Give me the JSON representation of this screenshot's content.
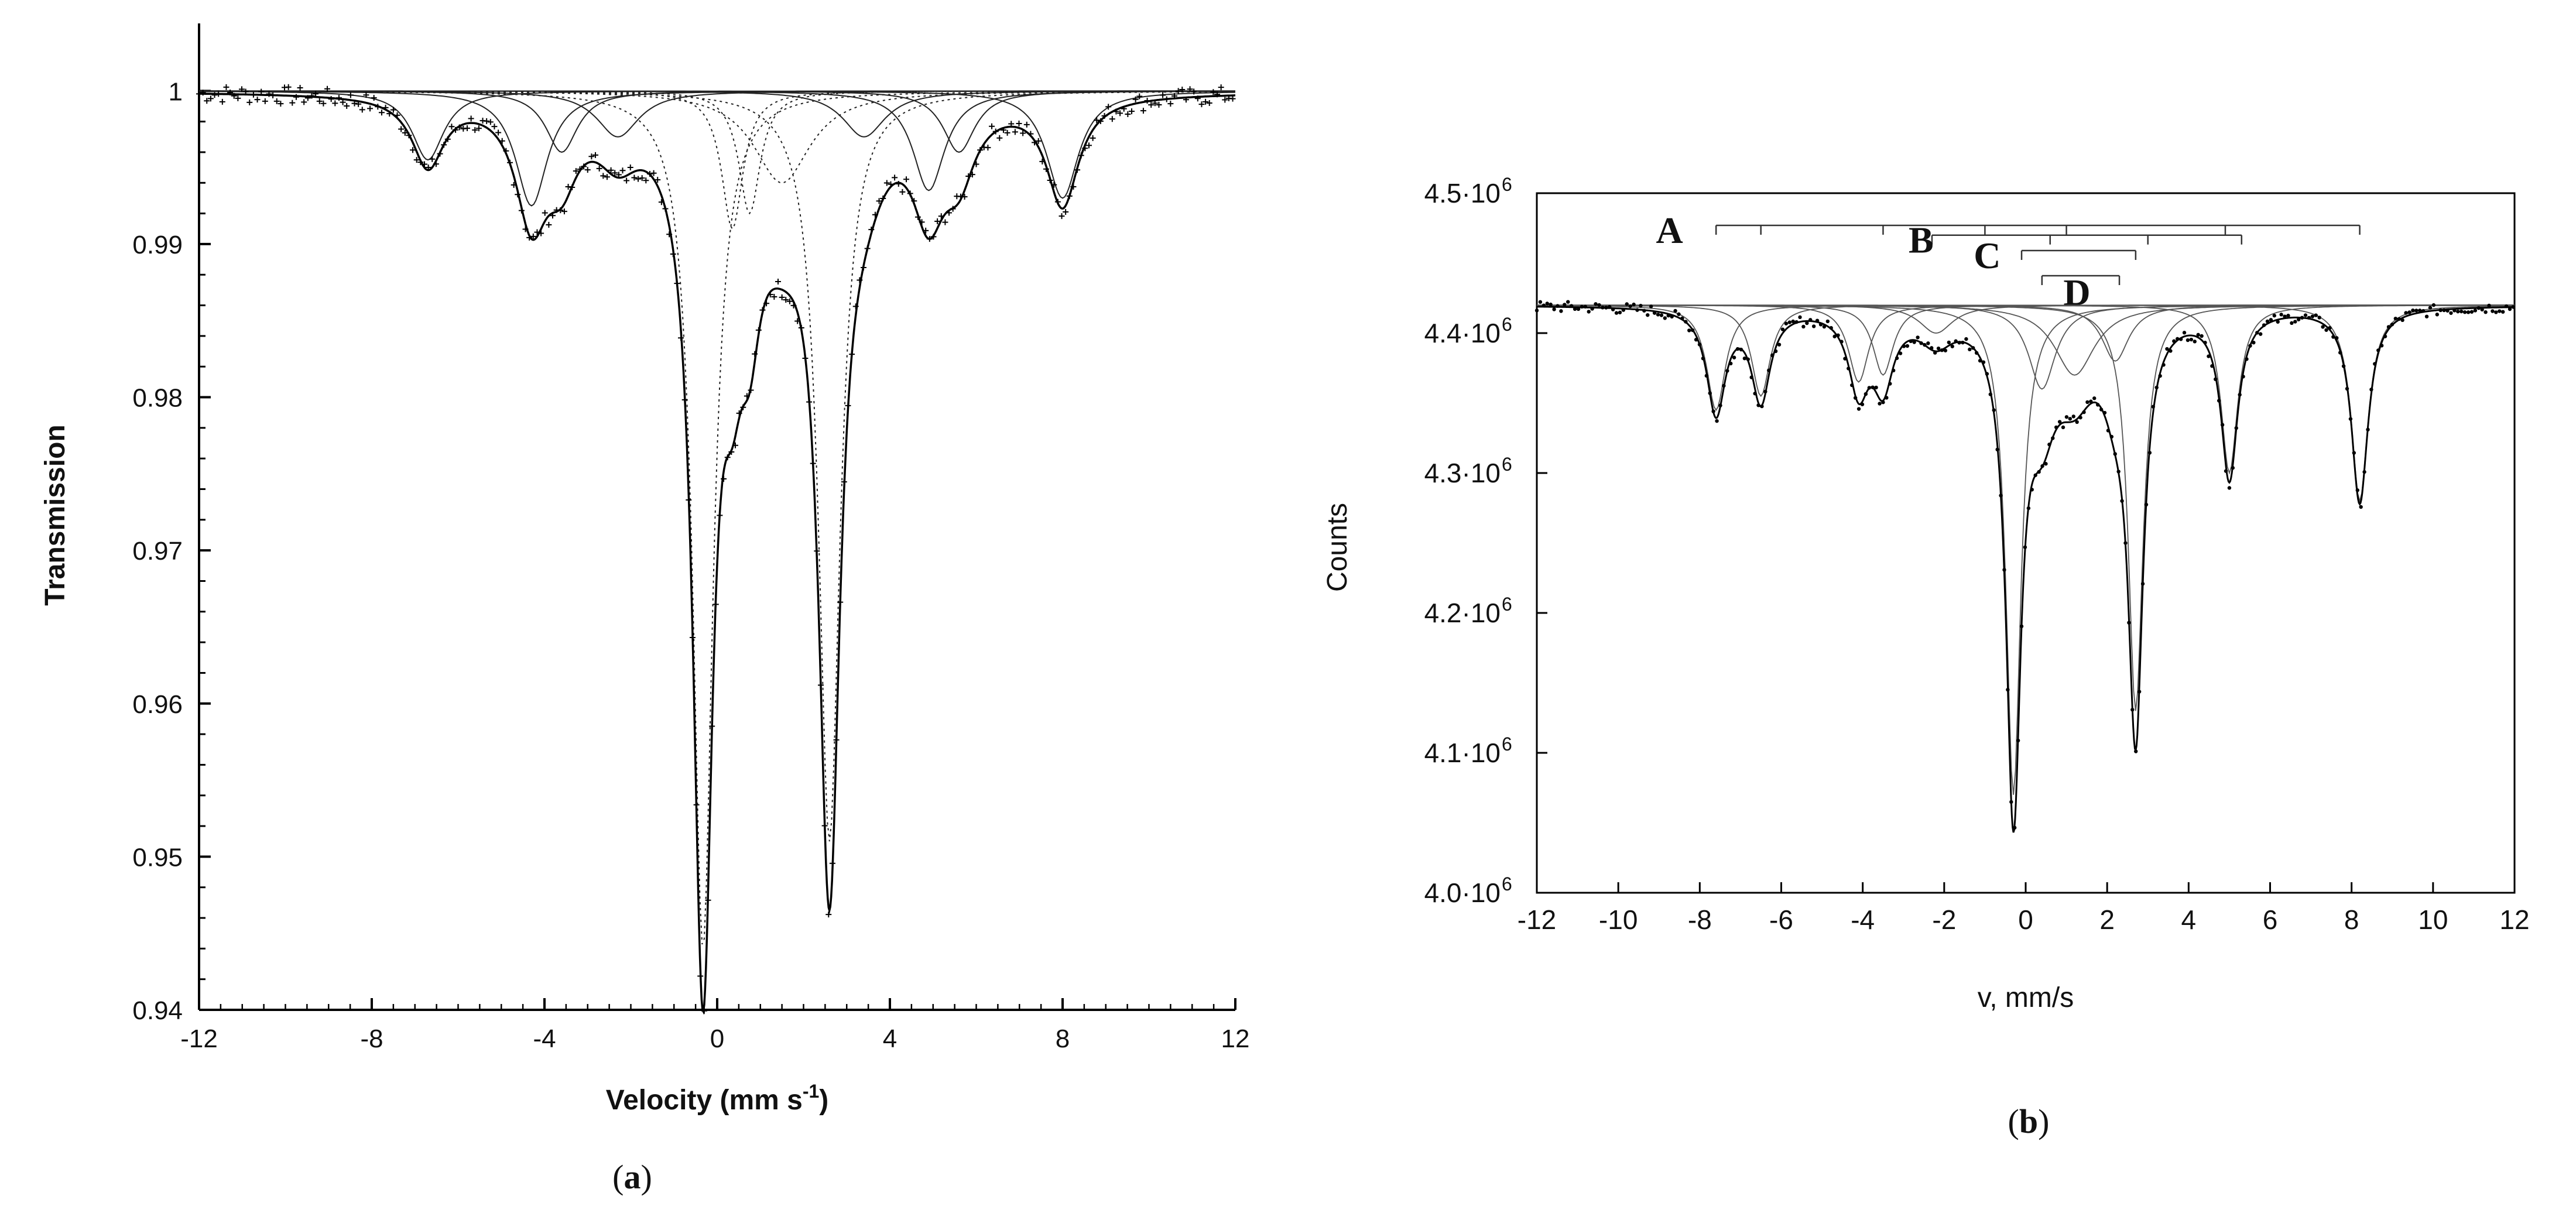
{
  "chart_data": [
    {
      "type": "line",
      "panel_label": "(a)",
      "panel_letter": "a",
      "xlabel": "Velocity (mm s",
      "xlabel_sup": "-1",
      "xlabel_end": ")",
      "ylabel": "Transmission",
      "xlim": [
        -12,
        12
      ],
      "ylim": [
        0.94,
        1.002
      ],
      "xticks": [
        -12,
        -8,
        -4,
        0,
        4,
        8,
        12
      ],
      "xtick_labels": [
        "-12",
        "-8",
        "-4",
        "0",
        "4",
        "8",
        "12"
      ],
      "yticks": [
        0.94,
        0.95,
        0.96,
        0.97,
        0.98,
        0.99,
        1
      ],
      "ytick_labels": [
        "0.94",
        "0.95",
        "0.96",
        "0.97",
        "0.98",
        "0.99",
        "1"
      ],
      "grid": false,
      "baseline": 1.0,
      "peaks": [
        {
          "x": -6.7,
          "depth": 0.0045,
          "width": 0.45
        },
        {
          "x": -4.3,
          "depth": 0.0075,
          "width": 0.45
        },
        {
          "x": -3.6,
          "depth": 0.004,
          "width": 0.45
        },
        {
          "x": -2.3,
          "depth": 0.003,
          "width": 0.6
        },
        {
          "x": -0.33,
          "depth": 0.056,
          "width": 0.28
        },
        {
          "x": 0.35,
          "depth": 0.009,
          "width": 0.3
        },
        {
          "x": 0.75,
          "depth": 0.008,
          "width": 0.3
        },
        {
          "x": 1.5,
          "depth": 0.006,
          "width": 0.8
        },
        {
          "x": 2.6,
          "depth": 0.049,
          "width": 0.3
        },
        {
          "x": 3.4,
          "depth": 0.003,
          "width": 0.6
        },
        {
          "x": 4.9,
          "depth": 0.0065,
          "width": 0.45
        },
        {
          "x": 5.6,
          "depth": 0.004,
          "width": 0.45
        },
        {
          "x": 8.0,
          "depth": 0.007,
          "width": 0.45
        }
      ]
    },
    {
      "type": "line",
      "panel_label": "(b)",
      "panel_letter": "b",
      "xlabel": "v, mm/s",
      "ylabel": "Counts",
      "xlim": [
        -12,
        12
      ],
      "ylim": [
        4.0,
        4.5
      ],
      "y_unit_note": "× 10^6",
      "xticks": [
        -12,
        -10,
        -8,
        -6,
        -4,
        -2,
        0,
        2,
        4,
        6,
        8,
        10,
        12
      ],
      "xtick_labels": [
        "-12",
        "-10",
        "-8",
        "-6",
        "-4",
        "-2",
        "0",
        "2",
        "4",
        "6",
        "8",
        "10",
        "12"
      ],
      "yticks": [
        4.0,
        4.1,
        4.2,
        4.3,
        4.4,
        4.5
      ],
      "ytick_labels": [
        "4.0·10",
        "4.1·10",
        "4.2·10",
        "4.3·10",
        "4.4·10",
        "4.5·10"
      ],
      "ytick_exponent": "6",
      "grid": false,
      "baseline": 4.42,
      "peaks": [
        {
          "x": -7.6,
          "depth": 0.075,
          "width": 0.28
        },
        {
          "x": -6.5,
          "depth": 0.065,
          "width": 0.28
        },
        {
          "x": -4.1,
          "depth": 0.055,
          "width": 0.3
        },
        {
          "x": -3.5,
          "depth": 0.05,
          "width": 0.3
        },
        {
          "x": -2.2,
          "depth": 0.02,
          "width": 0.5
        },
        {
          "x": -0.3,
          "depth": 0.35,
          "width": 0.22
        },
        {
          "x": 0.4,
          "depth": 0.06,
          "width": 0.4
        },
        {
          "x": 1.2,
          "depth": 0.05,
          "width": 0.6
        },
        {
          "x": 2.2,
          "depth": 0.04,
          "width": 0.4
        },
        {
          "x": 2.7,
          "depth": 0.29,
          "width": 0.22
        },
        {
          "x": 5.0,
          "depth": 0.12,
          "width": 0.25
        },
        {
          "x": 8.2,
          "depth": 0.14,
          "width": 0.25
        }
      ],
      "subspectra_markers": [
        {
          "label": "A",
          "y": 4.477,
          "x_start": -7.6,
          "x_end": 8.2,
          "drops": [
            -7.6,
            -6.5,
            -3.5,
            -1.0,
            1.0,
            4.9,
            8.2
          ]
        },
        {
          "label": "B",
          "y": 4.47,
          "x_start": -2.3,
          "x_end": 5.3,
          "drops": [
            -2.3,
            0.6,
            3.0,
            5.3
          ]
        },
        {
          "label": "C",
          "y": 4.459,
          "x_start": -0.1,
          "x_end": 2.7,
          "drops": [
            -0.1,
            2.7
          ]
        },
        {
          "label": "D",
          "y": 4.441,
          "x_start": 0.4,
          "x_end": 2.3,
          "drops": [
            0.4,
            2.3
          ]
        }
      ]
    }
  ]
}
